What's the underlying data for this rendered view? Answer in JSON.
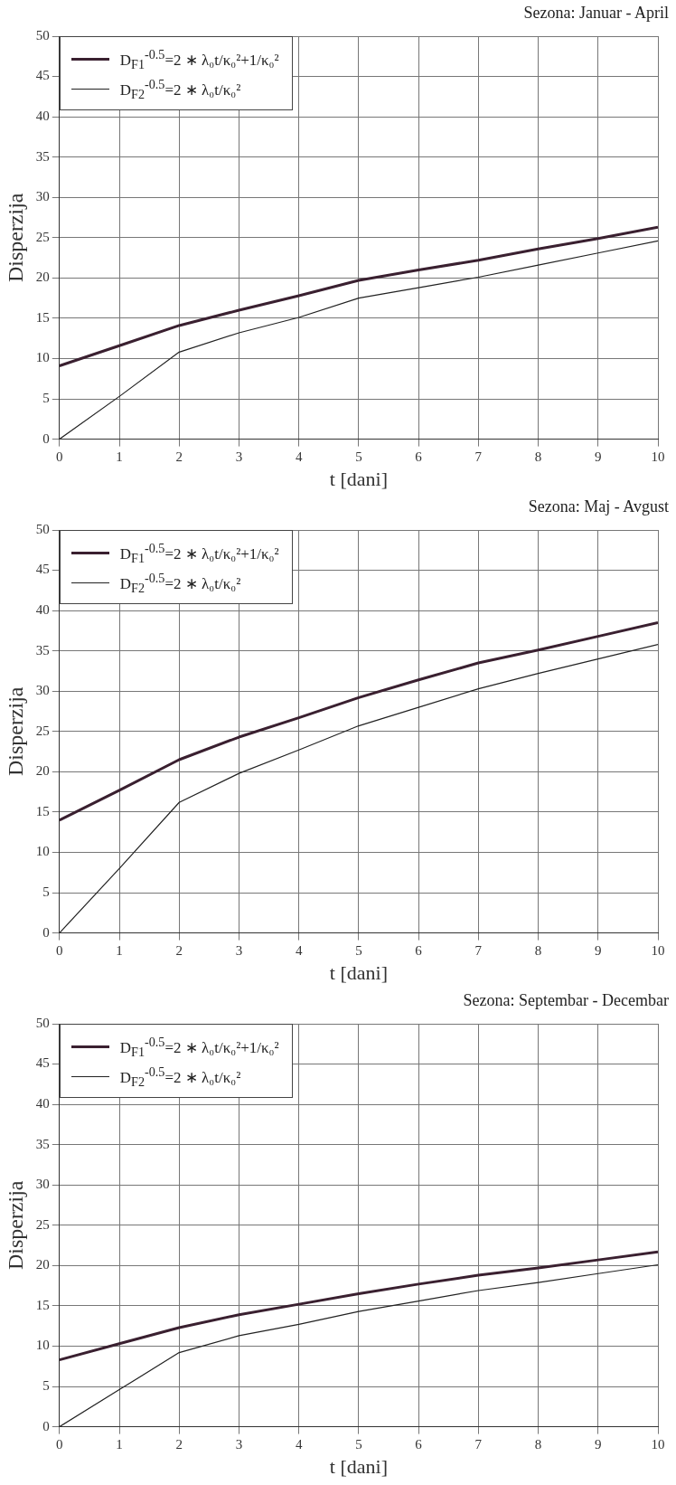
{
  "chart_data": [
    {
      "type": "line",
      "title": "Sezona: Januar - April",
      "xlabel": "t [dani]",
      "ylabel": "Disperzija",
      "x": [
        0,
        1,
        2,
        3,
        4,
        5,
        6,
        7,
        8,
        9,
        10
      ],
      "series": [
        {
          "name": "D$_{F1}$$^{-0.5}$=2 ∗ λ₀t/κ₀²+1/κ₀²",
          "color": "#3a2030",
          "values": [
            9.1,
            11.6,
            14.1,
            16.0,
            17.8,
            19.7,
            21.0,
            22.2,
            23.6,
            24.9,
            26.3
          ]
        },
        {
          "name": "D$_{F2}$$^{-0.5}$=2 ∗ λ₀t/κ₀²",
          "color": "#222222",
          "values": [
            0,
            5.3,
            10.8,
            13.2,
            15.1,
            17.5,
            18.8,
            20.1,
            21.6,
            23.1,
            24.6
          ]
        }
      ],
      "xlim": [
        0,
        10
      ],
      "xticks": [
        0,
        1,
        2,
        3,
        4,
        5,
        6,
        7,
        8,
        9,
        10
      ],
      "ylim": [
        0,
        50
      ],
      "yticks": [
        0,
        5,
        10,
        15,
        20,
        25,
        30,
        35,
        40,
        45,
        50
      ],
      "grid": true,
      "legend": "top left",
      "marker": "none",
      "line_style": "solid"
    },
    {
      "type": "line",
      "title": "Sezona: Maj - Avgust",
      "xlabel": "t [dani]",
      "ylabel": "Disperzija",
      "x": [
        0,
        1,
        2,
        3,
        4,
        5,
        6,
        7,
        8,
        9,
        10
      ],
      "series": [
        {
          "name": "D$_{F1}$$^{-0.5}$=2 ∗ λ₀t/κ₀²+1/κ₀²",
          "color": "#3a2030",
          "values": [
            14.0,
            17.7,
            21.5,
            24.3,
            26.7,
            29.2,
            31.4,
            33.5,
            35.1,
            36.8,
            38.5
          ]
        },
        {
          "name": "D$_{F2}$$^{-0.5}$=2 ∗ λ₀t/κ₀²",
          "color": "#222222",
          "values": [
            0,
            8.0,
            16.2,
            19.8,
            22.7,
            25.7,
            28.0,
            30.3,
            32.2,
            34.0,
            35.8
          ]
        }
      ],
      "xlim": [
        0,
        10
      ],
      "xticks": [
        0,
        1,
        2,
        3,
        4,
        5,
        6,
        7,
        8,
        9,
        10
      ],
      "ylim": [
        0,
        50
      ],
      "yticks": [
        0,
        5,
        10,
        15,
        20,
        25,
        30,
        35,
        40,
        45,
        50
      ],
      "grid": true,
      "legend": "top left",
      "marker": "none",
      "line_style": "solid"
    },
    {
      "type": "line",
      "title": "Sezona: Septembar - Decembar",
      "xlabel": "t [dani]",
      "ylabel": "Disperzija",
      "x": [
        0,
        1,
        2,
        3,
        4,
        5,
        6,
        7,
        8,
        9,
        10
      ],
      "series": [
        {
          "name": "D$_{F1}$$^{-0.5}$=2 ∗ λ₀t/κ₀²+1/κ₀²",
          "color": "#3a2030",
          "values": [
            8.3,
            10.3,
            12.3,
            13.9,
            15.2,
            16.5,
            17.7,
            18.8,
            19.7,
            20.7,
            21.7
          ]
        },
        {
          "name": "D$_{F2}$$^{-0.5}$=2 ∗ λ₀t/κ₀²",
          "color": "#222222",
          "values": [
            0,
            4.6,
            9.2,
            11.3,
            12.7,
            14.3,
            15.6,
            16.9,
            17.9,
            19.0,
            20.1
          ]
        }
      ],
      "xlim": [
        0,
        10
      ],
      "xticks": [
        0,
        1,
        2,
        3,
        4,
        5,
        6,
        7,
        8,
        9,
        10
      ],
      "ylim": [
        0,
        50
      ],
      "yticks": [
        0,
        5,
        10,
        15,
        20,
        25,
        30,
        35,
        40,
        45,
        50
      ],
      "grid": true,
      "legend": "top left",
      "marker": "none",
      "line_style": "solid"
    }
  ]
}
